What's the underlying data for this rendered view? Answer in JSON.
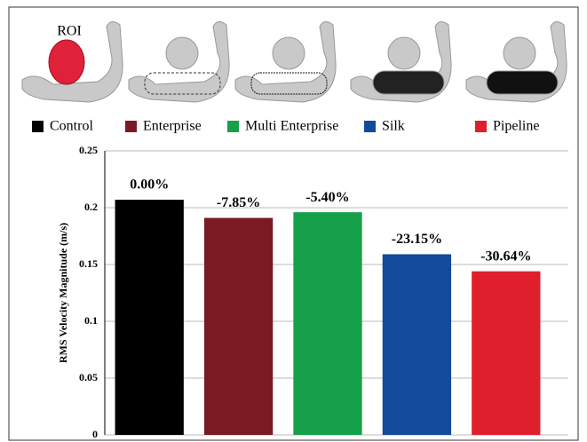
{
  "chart_data": {
    "type": "bar",
    "roi_label": "ROI",
    "y_label": "RMS Velocity Magnitude (m/s)",
    "categories": [
      "Control",
      "Enterprise",
      "Multi Enterprise",
      "Silk",
      "Pipeline"
    ],
    "colors": [
      "#000000",
      "#7b1a22",
      "#17a04a",
      "#134a9a",
      "#e01f2d"
    ],
    "values": [
      0.207,
      0.191,
      0.196,
      0.159,
      0.144
    ],
    "change_labels": [
      "0.00%",
      "-7.85%",
      "-5.40%",
      "-23.15%",
      "-30.64%"
    ],
    "ylim": [
      0,
      0.25
    ],
    "yticks": [
      0,
      0.05,
      0.1,
      0.15,
      0.2,
      0.25
    ],
    "grid": true
  }
}
